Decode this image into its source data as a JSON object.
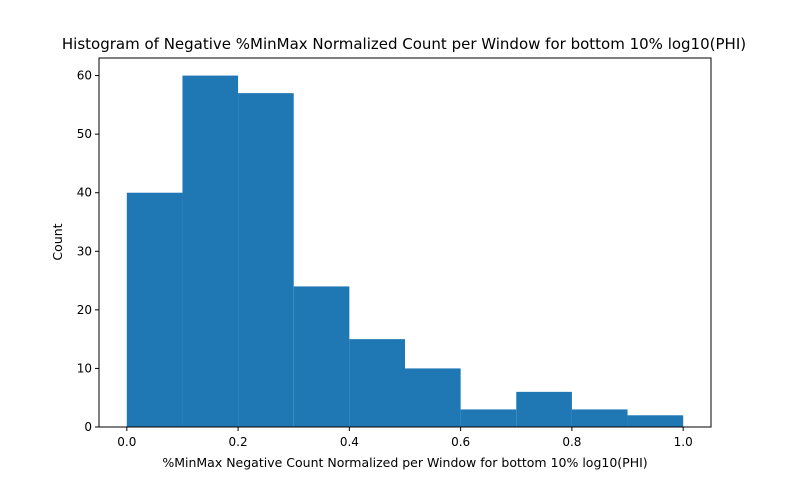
{
  "chart_data": {
    "type": "bar",
    "title": "Histogram of Negative %MinMax Normalized Count per Window for bottom 10% log10(PHI)",
    "xlabel": "%MinMax Negative Count Normalized per Window for bottom 10% log10(PHI)",
    "ylabel": "Count",
    "bin_edges": [
      0.0,
      0.1,
      0.2,
      0.3,
      0.4,
      0.5,
      0.6,
      0.7,
      0.8,
      0.9,
      1.0
    ],
    "values": [
      40,
      60,
      57,
      24,
      15,
      10,
      3,
      6,
      3,
      2
    ],
    "xlim": [
      -0.05,
      1.05
    ],
    "ylim": [
      0,
      63
    ],
    "xticks": [
      0.0,
      0.2,
      0.4,
      0.6,
      0.8,
      1.0
    ],
    "xtick_labels": [
      "0.0",
      "0.2",
      "0.4",
      "0.6",
      "0.8",
      "1.0"
    ],
    "yticks": [
      0,
      10,
      20,
      30,
      40,
      50,
      60
    ],
    "ytick_labels": [
      "0",
      "10",
      "20",
      "30",
      "40",
      "50",
      "60"
    ],
    "bar_color": "#1f77b4",
    "grid": false,
    "legend": "none"
  }
}
